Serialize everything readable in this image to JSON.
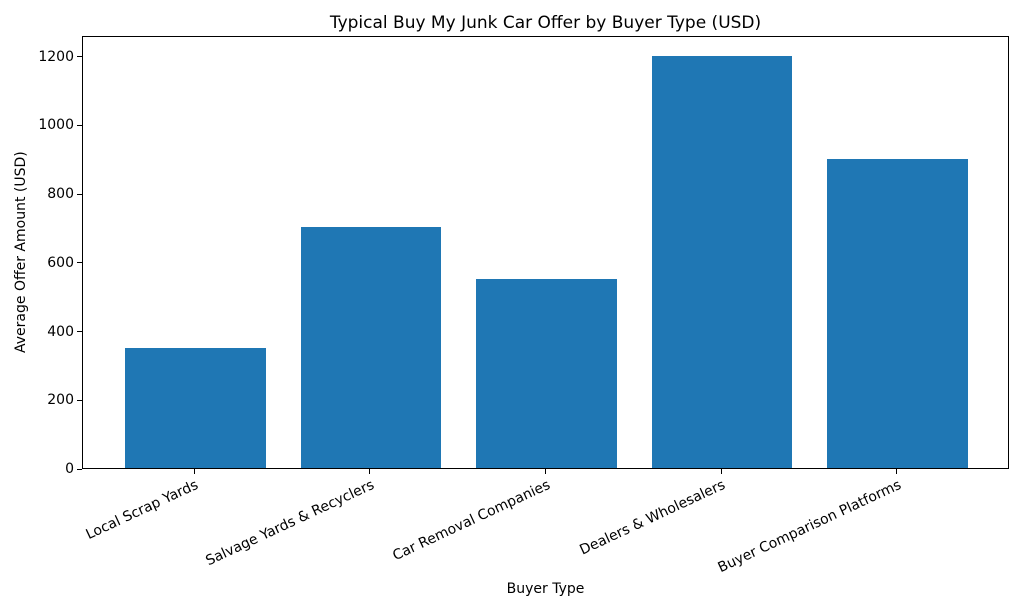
{
  "chart_data": {
    "type": "bar",
    "title": "Typical Buy My Junk Car Offer by Buyer Type (USD)",
    "xlabel": "Buyer Type",
    "ylabel": "Average Offer Amount (USD)",
    "categories": [
      "Local Scrap Yards",
      "Salvage Yards & Recyclers",
      "Car Removal Companies",
      "Dealers & Wholesalers",
      "Buyer Comparison Platforms"
    ],
    "values": [
      350,
      700,
      550,
      1200,
      900
    ],
    "yticks": [
      0,
      200,
      400,
      600,
      800,
      1000,
      1200
    ],
    "ylim": [
      0,
      1260
    ],
    "bar_color": "#1f77b4",
    "grid": false,
    "legend": null,
    "tick_label_rotation_deg": 25
  }
}
